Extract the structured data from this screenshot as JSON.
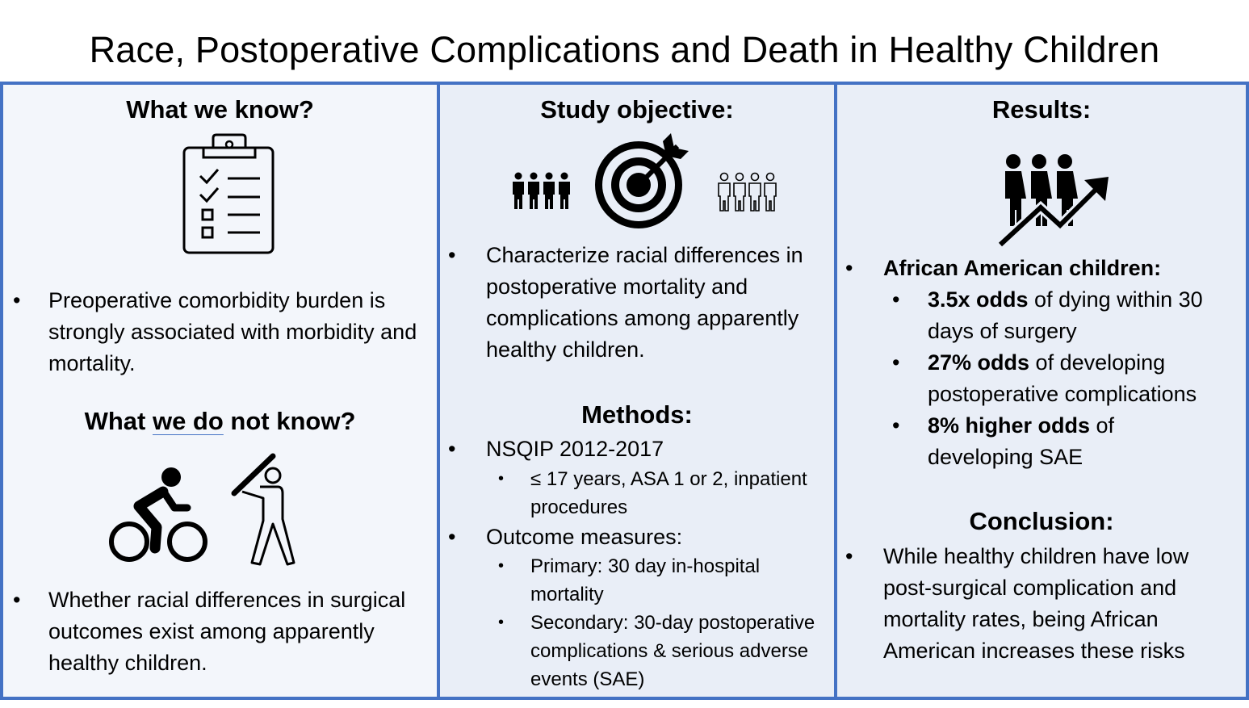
{
  "title": "Race, Postoperative Complications and Death in Healthy Children",
  "col1": {
    "heading1": "What we know?",
    "bullet1": "Preoperative comorbidity burden is strongly associated with morbidity and mortality.",
    "heading2_a": "What ",
    "heading2_b": "we do",
    "heading2_c": " not know?",
    "bullet2": "Whether racial differences in surgical outcomes exist among apparently healthy children."
  },
  "col2": {
    "heading1": "Study objective:",
    "bullet1": "Characterize racial differences in postoperative mortality and complications among apparently healthy children.",
    "heading2": "Methods:",
    "m1": "NSQIP 2012-2017",
    "m1_sub1": "≤ 17 years, ASA 1 or 2, inpatient procedures",
    "m2": "Outcome measures:",
    "m2_sub1": "Primary: 30 day in-hospital mortality",
    "m2_sub2": "Secondary: 30-day postoperative complications & serious adverse events (SAE)"
  },
  "col3": {
    "heading1": "Results:",
    "r1": "African American children:",
    "r1_sub1_bold": "3.5x odds",
    "r1_sub1_rest": " of dying within 30 days of surgery",
    "r1_sub2_bold": "27% odds",
    "r1_sub2_rest": " of developing postoperative complications",
    "r1_sub3_bold": "8% higher odds",
    "r1_sub3_rest": " of developing SAE",
    "heading2": "Conclusion:",
    "c1": "While healthy children have low post-surgical complication and mortality rates, being African American increases these risks"
  },
  "bullet_char": "•",
  "icons": [
    "clipboard-checklist-icon",
    "cyclist-icon",
    "baseball-batter-icon",
    "group-filled-icon",
    "target-arrow-icon",
    "group-outline-icon",
    "people-trend-up-icon"
  ],
  "colors": {
    "border": "#4472c4",
    "panel_left": "#f3f6fb",
    "panel": "#e9eef7"
  }
}
